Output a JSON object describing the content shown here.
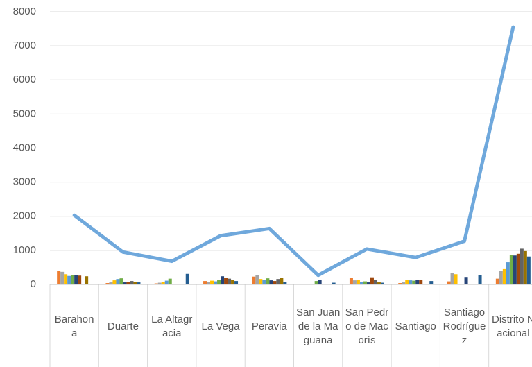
{
  "chart_data": {
    "type": "combo",
    "categories": [
      "Barahona",
      "Duarte",
      "La Altagracia",
      "La Vega",
      "Peravia",
      "San Juan de la Maguana",
      "San Pedro de Macorís",
      "Santiago",
      "Santiago Rodríguez",
      "Distrito Nacional"
    ],
    "ylim": [
      0,
      8000
    ],
    "yticks": [
      0,
      1000,
      2000,
      3000,
      4000,
      5000,
      6000,
      7000,
      8000
    ],
    "grid": true,
    "series": [
      {
        "type": "bar",
        "color": "#ed7d31",
        "values": [
          400,
          40,
          30,
          100,
          230,
          0,
          190,
          40,
          90,
          170
        ]
      },
      {
        "type": "bar",
        "color": "#a5a5a5",
        "values": [
          370,
          60,
          50,
          70,
          280,
          0,
          120,
          60,
          340,
          400
        ]
      },
      {
        "type": "bar",
        "color": "#ffc000",
        "values": [
          300,
          120,
          70,
          110,
          160,
          0,
          130,
          140,
          300,
          450
        ]
      },
      {
        "type": "bar",
        "color": "#5b9bd5",
        "values": [
          250,
          160,
          110,
          90,
          130,
          0,
          80,
          120,
          0,
          650
        ]
      },
      {
        "type": "bar",
        "color": "#70ad47",
        "values": [
          280,
          180,
          170,
          130,
          180,
          100,
          90,
          110,
          0,
          870
        ]
      },
      {
        "type": "bar",
        "color": "#264478",
        "values": [
          270,
          60,
          0,
          240,
          120,
          130,
          60,
          140,
          220,
          850
        ]
      },
      {
        "type": "bar",
        "color": "#9e480e",
        "values": [
          260,
          80,
          0,
          200,
          100,
          0,
          210,
          140,
          0,
          900
        ]
      },
      {
        "type": "bar",
        "color": "#636363",
        "values": [
          0,
          100,
          0,
          170,
          160,
          0,
          130,
          0,
          0,
          1050
        ]
      },
      {
        "type": "bar",
        "color": "#997300",
        "values": [
          240,
          70,
          0,
          140,
          190,
          0,
          60,
          0,
          0,
          980
        ]
      },
      {
        "type": "bar",
        "color": "#255e91",
        "values": [
          0,
          60,
          310,
          100,
          80,
          50,
          50,
          100,
          280,
          820
        ]
      },
      {
        "type": "line",
        "color": "#6fa8dc",
        "values": [
          2030,
          950,
          680,
          1430,
          1640,
          270,
          1040,
          790,
          1270,
          7550
        ]
      }
    ]
  }
}
